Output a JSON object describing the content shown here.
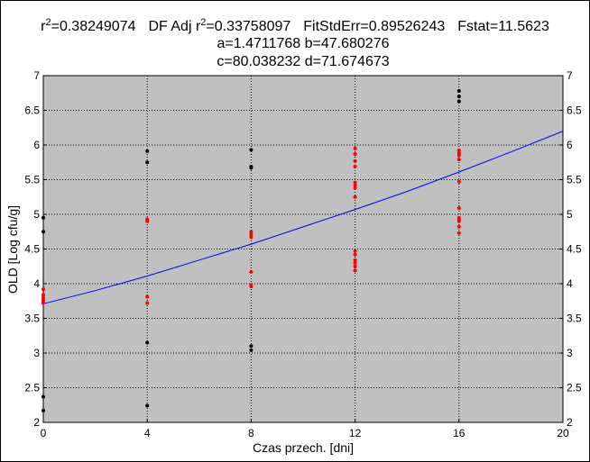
{
  "chart_data": {
    "type": "scatter",
    "title": {
      "line1": {
        "r2_label": "r",
        "r2_sup": "2",
        "r2_value": "=0.38249074",
        "adj_label": "DF Adj r",
        "adj_sup": "2",
        "adj_value": "=0.33758097",
        "fitstderr": "FitStdErr=0.89526243",
        "fstat": "Fstat=11.5623"
      },
      "line2": "a=1.4711768 b=47.680276",
      "line3": "c=80.038232 d=71.674673"
    },
    "xlabel": "Czas przech. [dni]",
    "ylabel": "OLD [Log cfu/g]",
    "xlim": [
      0,
      20
    ],
    "ylim": [
      2,
      7
    ],
    "x_ticks": [
      0,
      4,
      8,
      12,
      16,
      20
    ],
    "y_ticks": [
      2,
      2.5,
      3,
      3.5,
      4,
      4.5,
      5,
      5.5,
      6,
      6.5,
      7
    ],
    "x_tick_labels": [
      "0",
      "4",
      "8",
      "12",
      "16",
      "20"
    ],
    "y_tick_labels": [
      "2",
      "2.5",
      "3",
      "3.5",
      "4",
      "4.5",
      "5",
      "5.5",
      "6",
      "6.5",
      "7"
    ],
    "grid": true,
    "colors": {
      "plot_background": "#c0c0c0",
      "fit_line": "#0000ff",
      "series_black": "#000000",
      "series_red": "#ff0000"
    },
    "series": [
      {
        "color": "#000000",
        "points": [
          [
            0,
            4.95
          ],
          [
            0,
            4.75
          ],
          [
            0,
            2.37
          ],
          [
            0,
            2.17
          ],
          [
            4,
            5.91
          ],
          [
            4,
            5.75
          ],
          [
            4,
            3.15
          ],
          [
            4,
            2.24
          ],
          [
            8,
            5.93
          ],
          [
            8,
            5.69
          ],
          [
            8,
            5.67
          ],
          [
            8,
            3.1
          ],
          [
            8,
            3.04
          ],
          [
            16,
            6.78
          ],
          [
            16,
            6.7
          ],
          [
            16,
            6.63
          ]
        ]
      },
      {
        "color": "#ff0000",
        "points": [
          [
            0,
            3.92
          ],
          [
            0,
            3.84
          ],
          [
            0,
            3.8
          ],
          [
            0,
            3.77
          ],
          [
            0,
            3.74
          ],
          [
            0,
            3.72
          ],
          [
            4,
            4.93
          ],
          [
            4,
            4.92
          ],
          [
            4,
            4.9
          ],
          [
            4,
            3.81
          ],
          [
            4,
            3.72
          ],
          [
            8,
            4.75
          ],
          [
            8,
            4.71
          ],
          [
            8,
            4.67
          ],
          [
            8,
            4.17
          ],
          [
            8,
            3.98
          ],
          [
            8,
            3.96
          ],
          [
            12,
            5.95
          ],
          [
            12,
            5.87
          ],
          [
            12,
            5.77
          ],
          [
            12,
            5.69
          ],
          [
            12,
            5.46
          ],
          [
            12,
            5.42
          ],
          [
            12,
            5.38
          ],
          [
            12,
            5.25
          ],
          [
            12,
            4.47
          ],
          [
            12,
            4.42
          ],
          [
            12,
            4.34
          ],
          [
            12,
            4.3
          ],
          [
            12,
            4.25
          ],
          [
            12,
            4.19
          ],
          [
            16,
            5.92
          ],
          [
            16,
            5.88
          ],
          [
            16,
            5.85
          ],
          [
            16,
            5.79
          ],
          [
            16,
            5.47
          ],
          [
            16,
            5.09
          ],
          [
            16,
            4.95
          ],
          [
            16,
            4.92
          ],
          [
            16,
            4.9
          ],
          [
            16,
            4.82
          ],
          [
            16,
            4.73
          ]
        ]
      }
    ],
    "fit_curve": [
      [
        0,
        3.71
      ],
      [
        2,
        3.9
      ],
      [
        4,
        4.11
      ],
      [
        6,
        4.34
      ],
      [
        8,
        4.57
      ],
      [
        10,
        4.82
      ],
      [
        12,
        5.07
      ],
      [
        14,
        5.33
      ],
      [
        16,
        5.61
      ],
      [
        18,
        5.9
      ],
      [
        20,
        6.2
      ]
    ]
  }
}
